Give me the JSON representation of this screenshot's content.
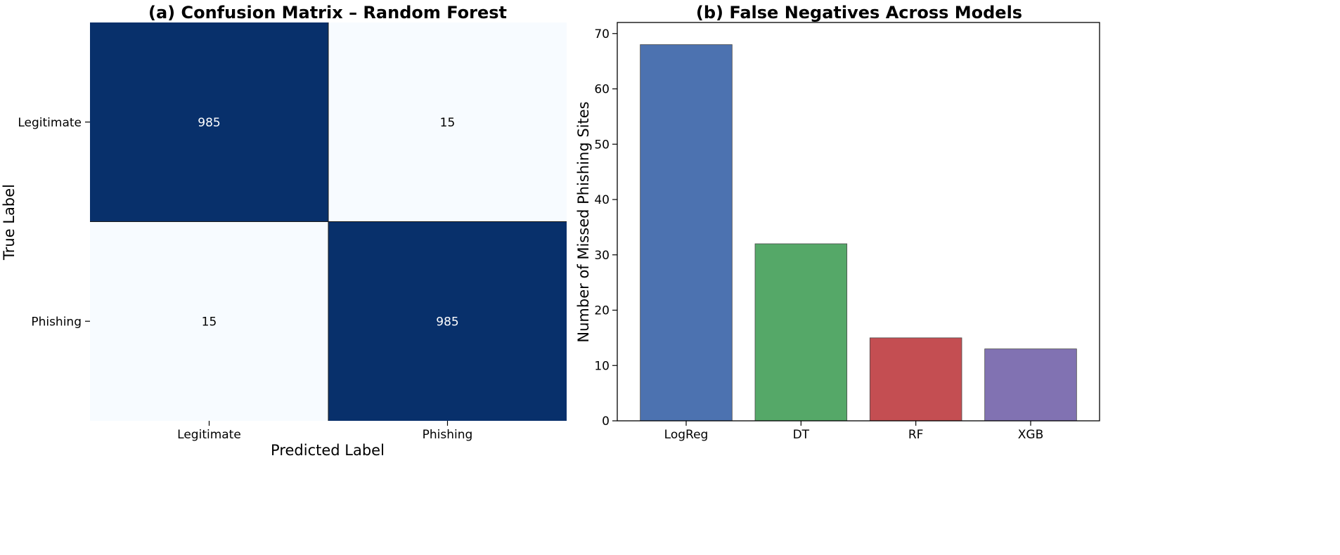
{
  "chart_data": [
    {
      "type": "heatmap",
      "title": "(a) Confusion Matrix – Random Forest",
      "xlabel": "Predicted Label",
      "ylabel": "True Label",
      "x_categories": [
        "Legitimate",
        "Phishing"
      ],
      "y_categories": [
        "Legitimate",
        "Phishing"
      ],
      "values": [
        [
          985,
          15
        ],
        [
          15,
          985
        ]
      ],
      "cell_labels": [
        [
          "985",
          "15"
        ],
        [
          "15",
          "985"
        ]
      ],
      "colormap": "Blues",
      "colorbar": false,
      "colors": {
        "high": "#08306b",
        "low": "#f7fbff",
        "high_text": "#ffffff",
        "low_text": "#000000"
      }
    },
    {
      "type": "bar",
      "title": "(b) False Negatives Across Models",
      "xlabel": "",
      "ylabel": "Number of Missed Phishing Sites",
      "categories": [
        "LogReg",
        "DT",
        "RF",
        "XGB"
      ],
      "values": [
        68,
        32,
        15,
        13
      ],
      "bar_colors": [
        "#4c72b0",
        "#55a868",
        "#c44e52",
        "#8172b2"
      ],
      "ylim": [
        0,
        72
      ],
      "yticks": [
        0,
        10,
        20,
        30,
        40,
        50,
        60,
        70
      ],
      "grid": false,
      "legend": "none"
    }
  ]
}
